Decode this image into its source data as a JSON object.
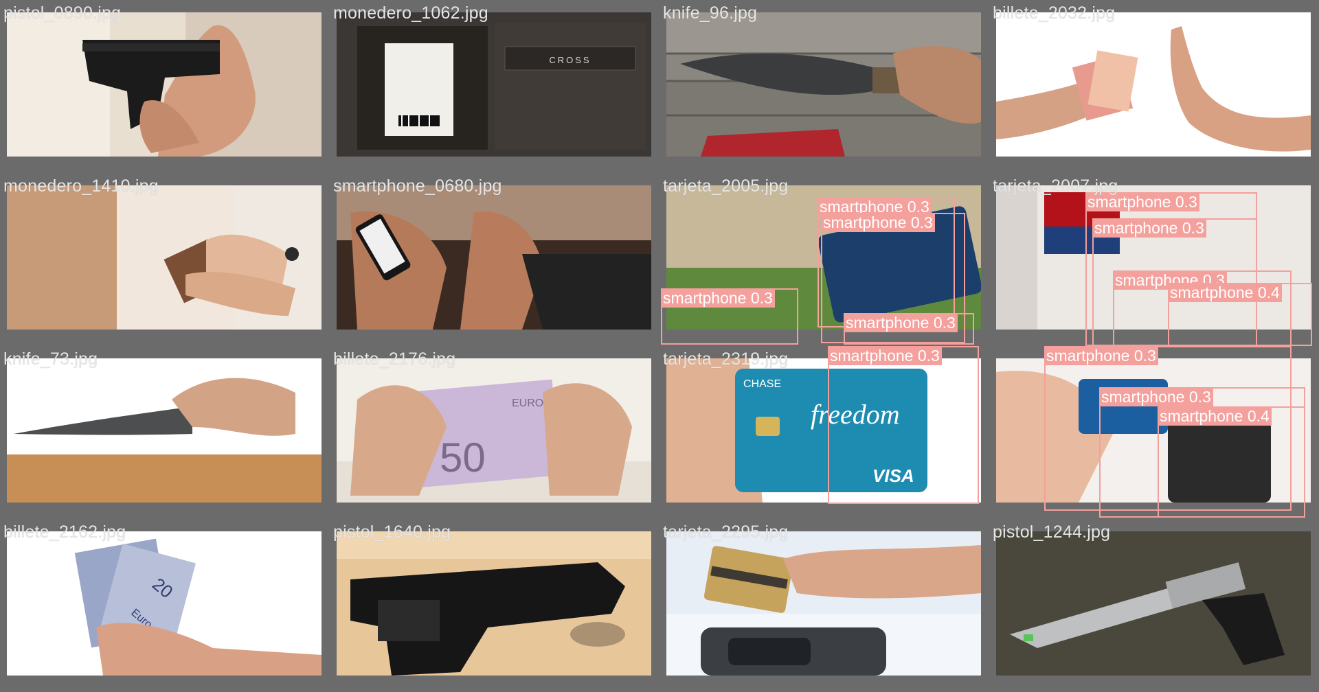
{
  "cells": [
    {
      "filename": "pistol_0890.jpg"
    },
    {
      "filename": "monedero_1062.jpg"
    },
    {
      "filename": "knife_96.jpg"
    },
    {
      "filename": "billete_2032.jpg"
    },
    {
      "filename": "monedero_1410.jpg"
    },
    {
      "filename": "smartphone_0680.jpg"
    },
    {
      "filename": "tarjeta_2005.jpg"
    },
    {
      "filename": "tarjeta_2007.jpg"
    },
    {
      "filename": "knife_73.jpg"
    },
    {
      "filename": "billete_2176.jpg"
    },
    {
      "filename": "tarjeta_2319.jpg"
    },
    {
      "filename": ""
    },
    {
      "filename": "billete_2162.jpg"
    },
    {
      "filename": "pistol_1640.jpg"
    },
    {
      "filename": "tarjeta_2295.jpg"
    },
    {
      "filename": "pistol_1244.jpg"
    }
  ],
  "photo_text": {
    "wallet_brand": "CROSS",
    "card_brand": "CHASE",
    "card_name": "freedom",
    "card_network": "VISA",
    "banknote_value": "50",
    "banknote_currency": "EURO",
    "cash_value": "20",
    "cash_currency": "Euro"
  },
  "detections": {
    "label": "smartphone",
    "scores": [
      "0.3",
      "0.3",
      "0.3",
      "0.3",
      "0.3",
      "0.3",
      "0.3",
      "0.3",
      "0.4",
      "0.3",
      "0.3",
      "0.4"
    ]
  },
  "colors": {
    "background": "#6b6b6b",
    "filename_text": "#e6e6e6",
    "detection_box": "#f4a09c"
  }
}
